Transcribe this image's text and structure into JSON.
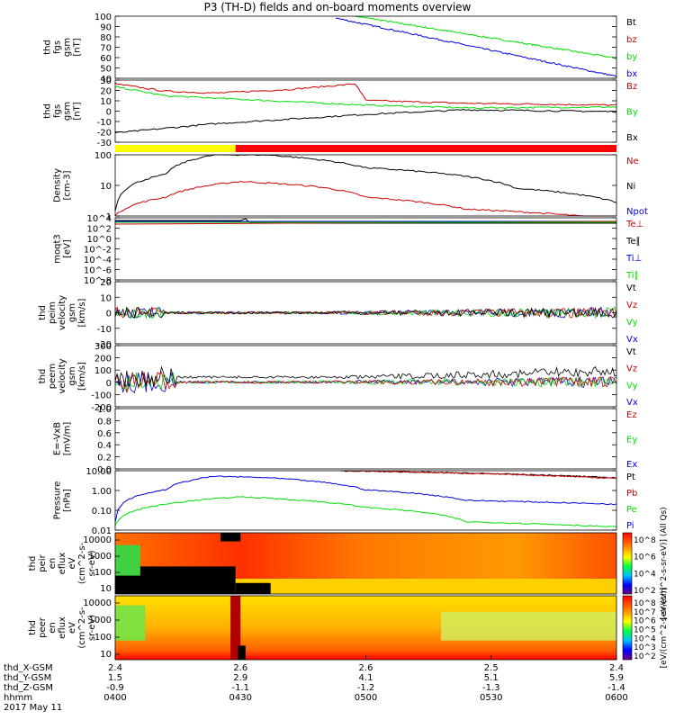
{
  "title": "P3 (TH-D) fields and on-board moments overview",
  "date_label": "2017 May 11",
  "colors": {
    "black": "#000000",
    "red": "#cc0000",
    "green": "#00dd00",
    "blue": "#0000dd",
    "yellow": "#ffff00",
    "bar_red": "#ff0000"
  },
  "chart_data": [
    {
      "id": "fgs_bt",
      "type": "line",
      "ylabel": [
        "thd",
        "fgs",
        "gsm",
        "[nT]"
      ],
      "yticks": [
        "100",
        "90",
        "80",
        "70",
        "60",
        "50",
        "40"
      ],
      "ylim": [
        35,
        100
      ],
      "series": [
        {
          "name": "Bt",
          "color": "#000000"
        },
        {
          "name": "bz",
          "color": "#cc0000"
        },
        {
          "name": "by",
          "color": "#00dd00",
          "x": [
            0.48,
            1.0
          ],
          "values": [
            100,
            56
          ]
        },
        {
          "name": "bx",
          "color": "#0000dd",
          "x": [
            0.44,
            1.0
          ],
          "values": [
            98,
            37
          ]
        }
      ]
    },
    {
      "id": "fgs_b",
      "type": "line",
      "ylabel": [
        "thd",
        "fgs",
        "gsm",
        "[nT]"
      ],
      "yticks": [
        "30",
        "20",
        "10",
        "0",
        "-10",
        "-20",
        "-30"
      ],
      "ylim": [
        -35,
        32
      ],
      "series": [
        {
          "name": "Bz",
          "color": "#cc0000",
          "x": [
            0,
            0.1,
            0.2,
            0.35,
            0.48,
            0.5,
            0.7,
            1.0
          ],
          "values": [
            28,
            20,
            18,
            22,
            28,
            10,
            7,
            5
          ]
        },
        {
          "name": "By",
          "color": "#00dd00",
          "x": [
            0,
            0.1,
            0.3,
            0.5,
            0.7,
            1.0
          ],
          "values": [
            25,
            15,
            10,
            5,
            2,
            3
          ]
        },
        {
          "name": "Bx",
          "color": "#000000",
          "x": [
            0,
            0.2,
            0.5,
            0.7,
            1.0
          ],
          "values": [
            -25,
            -15,
            -5,
            0,
            -2
          ]
        }
      ]
    },
    {
      "id": "mode_bar",
      "type": "bar",
      "segments": [
        {
          "from": 0,
          "to": 0.24,
          "color": "#ffff00"
        },
        {
          "from": 0.24,
          "to": 1.0,
          "color": "#ff0000"
        }
      ]
    },
    {
      "id": "density",
      "type": "line",
      "log": true,
      "ylabel": [
        "Density",
        "[cm-3]"
      ],
      "yticks": [
        "100",
        "10",
        "1"
      ],
      "ylim": [
        0.3,
        150
      ],
      "series": [
        {
          "name": "Ne",
          "color": "#cc0000",
          "x": [
            0,
            0.1,
            0.25,
            0.4,
            0.5,
            0.7,
            1.0
          ],
          "values": [
            0.3,
            2,
            10,
            6,
            2,
            0.6,
            0.2
          ]
        },
        {
          "name": "Ni",
          "color": "#000000",
          "x": [
            0,
            0.1,
            0.2,
            0.3,
            0.5,
            0.8,
            1.0
          ],
          "values": [
            0.5,
            20,
            150,
            150,
            40,
            5,
            1.2
          ]
        },
        {
          "name": "Npot",
          "color": "#0000dd"
        }
      ]
    },
    {
      "id": "moms_t",
      "type": "line",
      "log": true,
      "ylabel": [
        "moqt3",
        "[eV]"
      ],
      "yticks": [
        "10^4",
        "10^2",
        "10^0",
        "10^-2",
        "10^-4",
        "10^-6",
        "10^-8"
      ],
      "ylim": [
        1e-09,
        100000.0
      ],
      "series": [
        {
          "name": "Te⊥",
          "color": "#cc0000"
        },
        {
          "name": "Te∥",
          "color": "#000000"
        },
        {
          "name": "Ti⊥",
          "color": "#0000dd"
        },
        {
          "name": "Ti∥",
          "color": "#00dd00"
        }
      ]
    },
    {
      "id": "peim_v",
      "type": "line",
      "ylabel": [
        "thd",
        "peim",
        "velocity",
        "gsm",
        "[km/s]"
      ],
      "yticks": [
        "20",
        "10",
        "0",
        "-10",
        "-20"
      ],
      "ylim": [
        -22,
        22
      ],
      "series": [
        {
          "name": "Vt",
          "color": "#000000"
        },
        {
          "name": "Vz",
          "color": "#cc0000"
        },
        {
          "name": "Vy",
          "color": "#00dd00"
        },
        {
          "name": "Vx",
          "color": "#0000dd"
        }
      ]
    },
    {
      "id": "peem_v",
      "type": "line",
      "ylabel": [
        "thd",
        "peem",
        "velocity",
        "gsm",
        "[km/s]"
      ],
      "yticks": [
        "300",
        "200",
        "100",
        "0",
        "-100",
        "-200"
      ],
      "ylim": [
        -210,
        310
      ],
      "series": [
        {
          "name": "Vt",
          "color": "#000000"
        },
        {
          "name": "Vz",
          "color": "#cc0000"
        },
        {
          "name": "Vy",
          "color": "#00dd00"
        },
        {
          "name": "Vx",
          "color": "#0000dd"
        }
      ]
    },
    {
      "id": "efield",
      "type": "line",
      "ylabel": [
        "E=-VxB",
        "[mV/m]"
      ],
      "yticks": [
        "1.0",
        "0.8",
        "0.6",
        "0.4",
        "0.2",
        "0.0"
      ],
      "ylim": [
        0,
        1
      ],
      "series": [
        {
          "name": "Ez",
          "color": "#cc0000"
        },
        {
          "name": "Ey",
          "color": "#00dd00"
        },
        {
          "name": "Ex",
          "color": "#0000dd"
        }
      ]
    },
    {
      "id": "pressure",
      "type": "line",
      "log": true,
      "ylabel": [
        "Pressure",
        "[nPa]"
      ],
      "yticks": [
        "10.00",
        "1.00",
        "0.10",
        "0.01"
      ],
      "ylim": [
        0.01,
        25
      ],
      "series": [
        {
          "name": "Pt",
          "color": "#000000",
          "x": [
            0.45,
            1.0
          ],
          "values": [
            25,
            10
          ]
        },
        {
          "name": "Pb",
          "color": "#cc0000",
          "x": [
            0.45,
            1.0
          ],
          "values": [
            25,
            9
          ]
        },
        {
          "name": "Pe",
          "color": "#00dd00",
          "x": [
            0,
            0.1,
            0.25,
            0.5,
            0.7,
            1.0
          ],
          "values": [
            0.02,
            0.3,
            0.8,
            0.2,
            0.03,
            0.015
          ]
        },
        {
          "name": "Pi",
          "color": "#0000dd",
          "x": [
            0,
            0.1,
            0.2,
            0.3,
            0.5,
            0.7,
            1.0
          ],
          "values": [
            0.03,
            2,
            12,
            10,
            2,
            0.5,
            0.3
          ]
        }
      ]
    },
    {
      "id": "peir_spec",
      "type": "heatmap",
      "ylabel": [
        "thd",
        "peir",
        "en",
        "eflux",
        "eV",
        "(cm^2-s-",
        "sr-eV)"
      ],
      "yticks": [
        "10000",
        "1000",
        "100",
        "10"
      ],
      "colorbar": {
        "label": "[eV/(cm^2-s-sr-eV)] (All Qs)",
        "ticks": [
          "10^8",
          "10^6",
          "10^4",
          "10^2"
        ]
      }
    },
    {
      "id": "peer_spec",
      "type": "heatmap",
      "ylabel": [
        "thd",
        "peer",
        "en",
        "eflux",
        "eV",
        "(cm^2-s-",
        "sr-eV)"
      ],
      "yticks": [
        "10000",
        "1000",
        "100",
        "10"
      ],
      "colorbar": {
        "label": "[eV/(cm^2-s-sr-eV)]",
        "ticks": [
          "10^8",
          "10^7",
          "10^6",
          "10^5",
          "10^4",
          "10^3",
          "10^2"
        ]
      }
    }
  ],
  "x_axis": {
    "rows": [
      {
        "label": "thd_X-GSM",
        "values": [
          "2.4",
          "2.6",
          "2.6",
          "2.5",
          "2.4"
        ]
      },
      {
        "label": "thd_Y-GSM",
        "values": [
          "1.5",
          "2.9",
          "4.1",
          "5.1",
          "5.9"
        ]
      },
      {
        "label": "thd_Z-GSM",
        "values": [
          "-0.9",
          "-1.1",
          "-1.2",
          "-1.3",
          "-1.4"
        ]
      },
      {
        "label": "hhmm",
        "values": [
          "0400",
          "0430",
          "0500",
          "0530",
          "0600"
        ]
      }
    ]
  }
}
